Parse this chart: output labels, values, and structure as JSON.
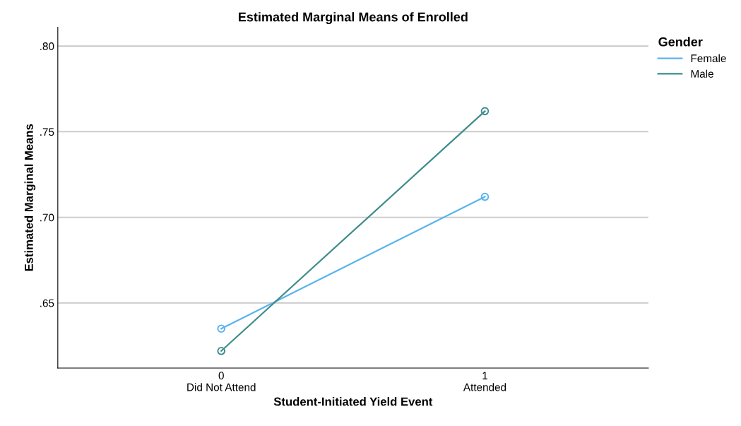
{
  "chart_data": {
    "type": "line",
    "title": "Estimated Marginal Means of Enrolled",
    "xlabel": "Student-Initiated Yield Event",
    "ylabel": "Estimated Marginal Means",
    "legend_title": "Gender",
    "categories": [
      "0\nDid Not Attend",
      "1\nAttended"
    ],
    "series": [
      {
        "name": "Female",
        "color": "#5ab4ec",
        "values": [
          0.635,
          0.712
        ]
      },
      {
        "name": "Male",
        "color": "#3f8c8c",
        "values": [
          0.622,
          0.762
        ]
      }
    ],
    "ylim": [
      0.612,
      0.811
    ],
    "yticks": [
      {
        "value": 0.65,
        "label": ".65"
      },
      {
        "value": 0.7,
        "label": ".70"
      },
      {
        "value": 0.75,
        "label": ".75"
      },
      {
        "value": 0.8,
        "label": ".80"
      }
    ],
    "grid": "y",
    "legend": "top right",
    "marker": "circle",
    "line_style": "solid"
  }
}
